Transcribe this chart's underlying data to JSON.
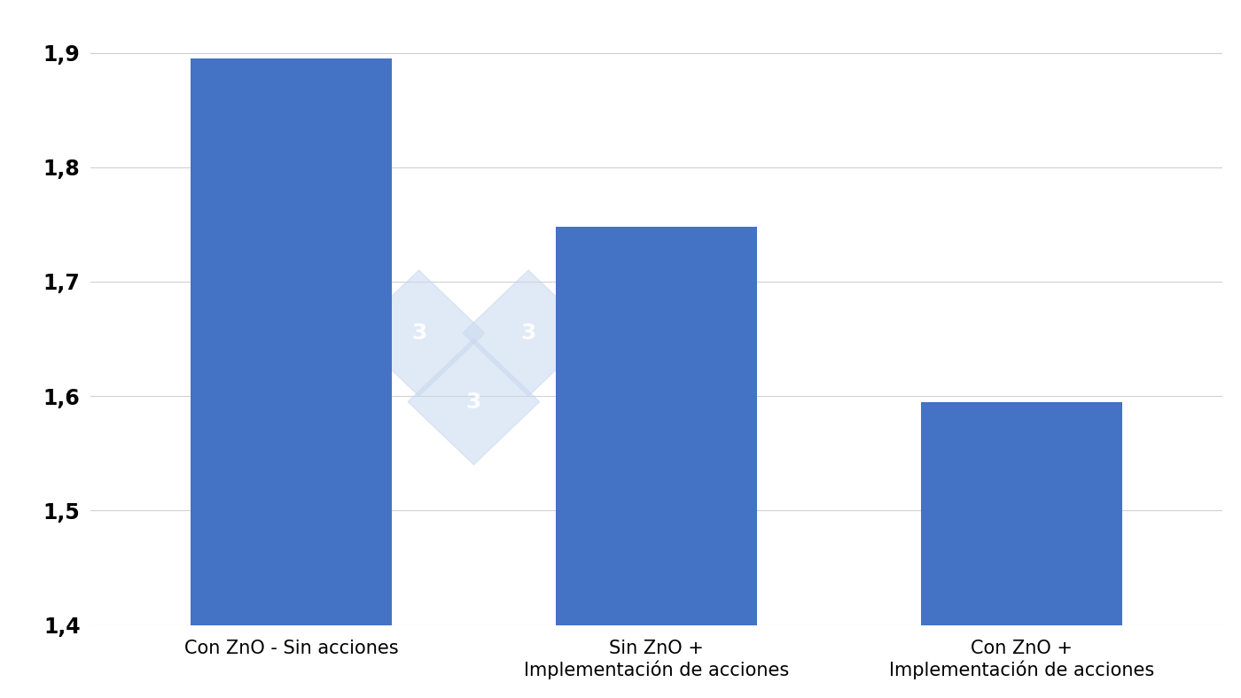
{
  "categories": [
    "Con ZnO - Sin acciones",
    "Sin ZnO +\nImplementación de acciones",
    "Con ZnO +\nImplementación de acciones"
  ],
  "values": [
    1.895,
    1.748,
    1.595
  ],
  "bar_color": "#4472C4",
  "ylim": [
    1.4,
    1.93
  ],
  "yticks": [
    1.4,
    1.5,
    1.6,
    1.7,
    1.8,
    1.9
  ],
  "ytick_labels": [
    "1,4",
    "1,5",
    "1,6",
    "1,7",
    "1,8",
    "1,9"
  ],
  "background_color": "#ffffff",
  "grid_color": "#d0d0d0",
  "bar_width": 0.55,
  "tick_fontsize": 17,
  "label_fontsize": 15,
  "xlim": [
    -0.55,
    2.55
  ]
}
